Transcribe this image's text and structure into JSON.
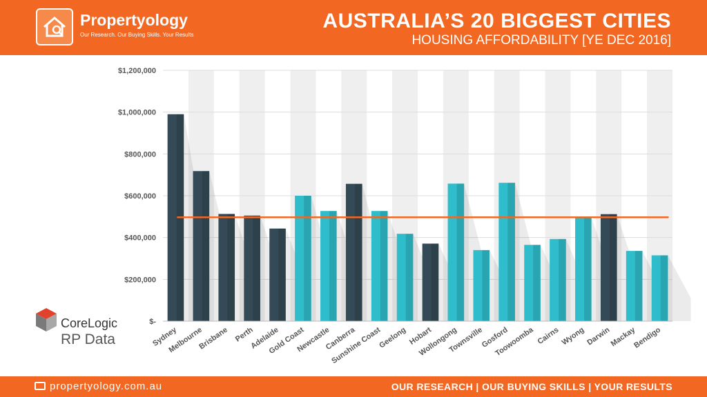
{
  "header": {
    "brand": "Propertyology",
    "tagline": "Our Research. Our Buying Skills. Your Results",
    "title": "AUSTRALIA’S 20 BIGGEST CITIES",
    "subtitle": "HOUSING AFFORDABILITY [YE  DEC 2016]"
  },
  "footer": {
    "url": "propertyology.com.au",
    "tagline": "OUR RESEARCH | OUR BUYING SKILLS | YOUR RESULTS"
  },
  "source_logo": {
    "name": "CoreLogic",
    "sub": "RP Data"
  },
  "colors": {
    "orange": "#f26722",
    "dark_bar": "#344a56",
    "teal_bar": "#2fbccb",
    "average_line": "#f26722"
  },
  "chart_data": {
    "type": "bar",
    "ylim": [
      0,
      1200000
    ],
    "yticks": [
      0,
      200000,
      400000,
      600000,
      800000,
      1000000,
      1200000
    ],
    "ytick_labels": [
      "$-",
      "$200,000",
      "$400,000",
      "$600,000",
      "$800,000",
      "$1,000,000",
      "$1,200,000"
    ],
    "categories": [
      "Sydney",
      "Melbourne",
      "Brisbane",
      "Perth",
      "Adelaide",
      "Gold Coast",
      "Newcastle",
      "Canberra",
      "Sunshine Coast",
      "Geelong",
      "Hobart",
      "Wollongong",
      "Townsville",
      "Gosford",
      "Toowoomba",
      "Cairns",
      "Wyong",
      "Darwin",
      "Mackay",
      "Bendigo"
    ],
    "values": [
      990000,
      718000,
      513000,
      505000,
      443000,
      600000,
      527000,
      657000,
      527000,
      418000,
      371000,
      658000,
      340000,
      662000,
      365000,
      393000,
      495000,
      512000,
      336000,
      315000
    ],
    "bar_colors": [
      "dark",
      "dark",
      "dark",
      "dark",
      "dark",
      "teal",
      "teal",
      "dark",
      "teal",
      "teal",
      "dark",
      "teal",
      "teal",
      "teal",
      "teal",
      "teal",
      "teal",
      "dark",
      "teal",
      "teal"
    ],
    "reference_line": 497000,
    "grid": true
  }
}
